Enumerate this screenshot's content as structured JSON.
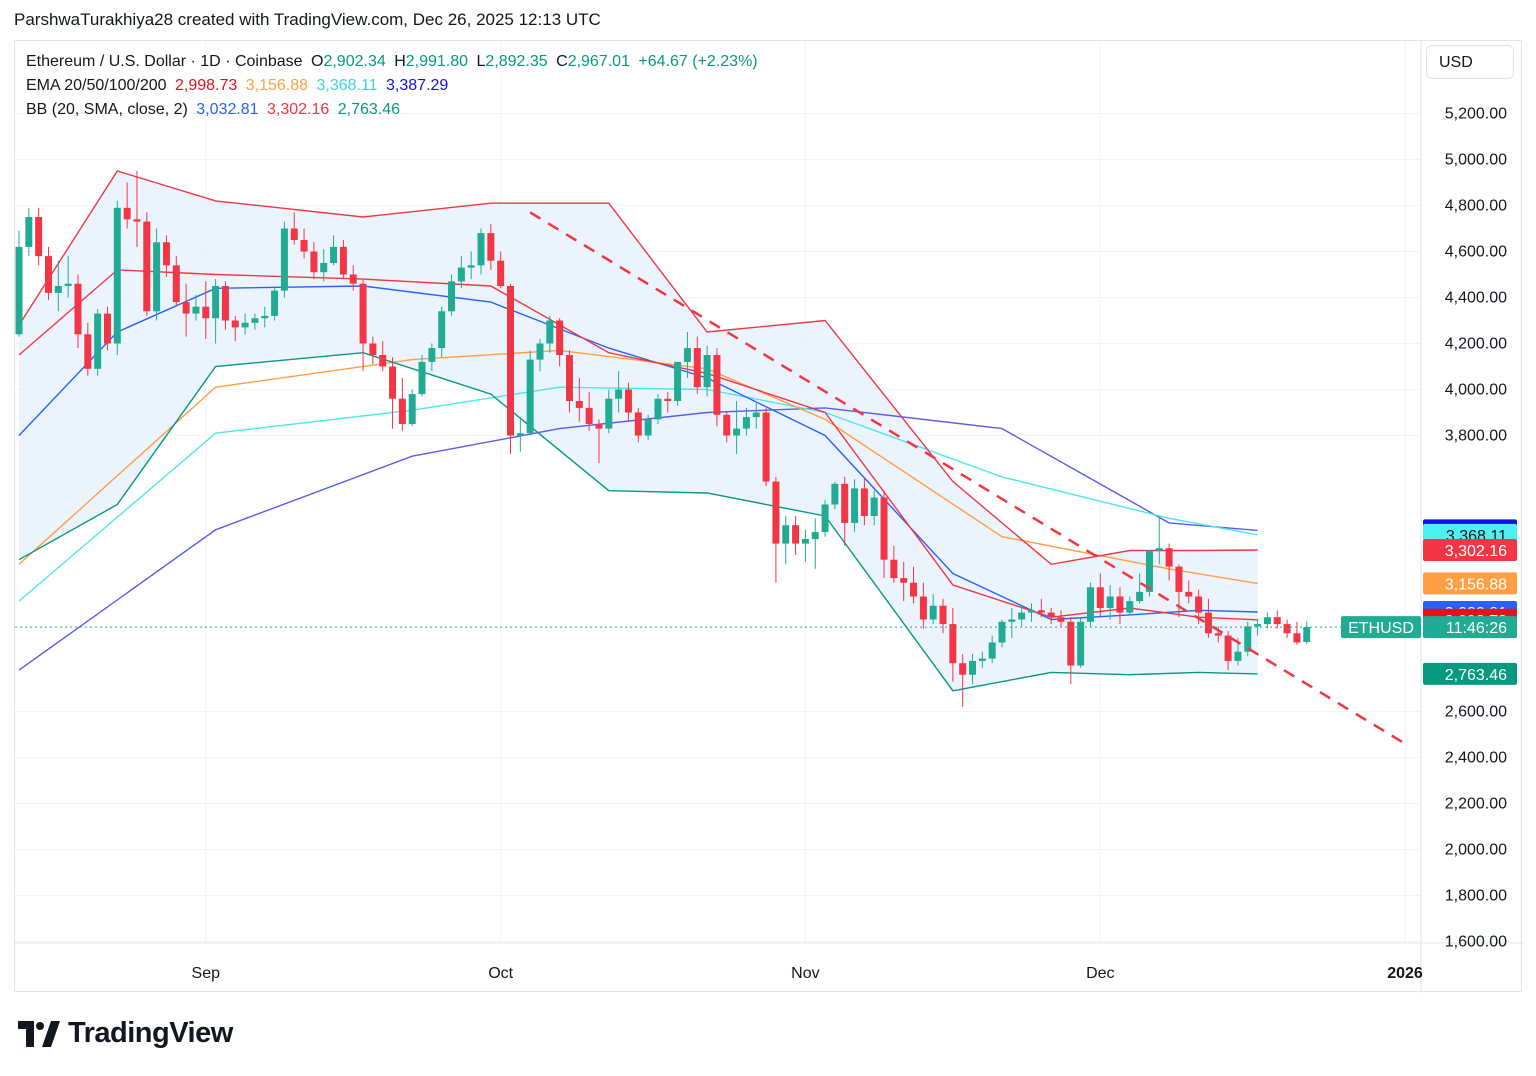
{
  "attribution": "ParshwaTurakhiya28 created with TradingView.com, Dec 26, 2025 12:13 UTC",
  "currency_button": "USD",
  "logo_text": "TradingView",
  "legend": {
    "symbol": "Ethereum / U.S. Dollar · 1D · Coinbase",
    "ohlc": [
      {
        "prefix": "O",
        "value": "2,902.34"
      },
      {
        "prefix": "H",
        "value": "2,991.80"
      },
      {
        "prefix": "L",
        "value": "2,892.35"
      },
      {
        "prefix": "C",
        "value": "2,967.01"
      }
    ],
    "change": "+64.67 (+2.23%)",
    "ema_label": "EMA 20/50/100/200",
    "ema_values": [
      "2,998.73",
      "3,156.88",
      "3,368.11",
      "3,387.29"
    ],
    "bb_label": "BB (20, SMA, close, 2)",
    "bb_values": [
      "3,032.81",
      "3,302.16",
      "2,763.46"
    ]
  },
  "colors": {
    "up": "#22ab94",
    "down": "#f23645",
    "ema20": "#f23645",
    "ema50": "#ff9f43",
    "ema100": "#4de8e8",
    "ema200": "#5b5bf0",
    "bb_basis": "#2962ff",
    "bb_upper": "#f23645",
    "bb_lower": "#089981",
    "bb_fill": "#e3f0fb",
    "trendline": "#f23645",
    "legend_green": "#089981"
  },
  "chart_data": {
    "type": "candlestick",
    "symbol": "ETHUSD",
    "y_ticks": [
      "5,200.00",
      "5,000.00",
      "4,800.00",
      "4,600.00",
      "4,400.00",
      "4,200.00",
      "4,000.00",
      "3,800.00",
      "2,600.00",
      "2,400.00",
      "2,200.00",
      "2,000.00",
      "1,800.00",
      "1,600.00"
    ],
    "y_tick_values": [
      5200,
      5000,
      4800,
      4600,
      4400,
      4200,
      4000,
      3800,
      2600,
      2400,
      2200,
      2000,
      1800,
      1600
    ],
    "x_ticks": [
      {
        "label": "Sep",
        "day": 19
      },
      {
        "label": "Oct",
        "day": 49
      },
      {
        "label": "Nov",
        "day": 80
      },
      {
        "label": "Dec",
        "day": 110
      },
      {
        "label": "2026",
        "day": 141,
        "bold": true
      }
    ],
    "candles": [
      [
        4240,
        4690,
        4230,
        4620
      ],
      [
        4620,
        4790,
        4580,
        4750
      ],
      [
        4750,
        4790,
        4540,
        4580
      ],
      [
        4580,
        4620,
        4390,
        4420
      ],
      [
        4420,
        4560,
        4340,
        4450
      ],
      [
        4450,
        4580,
        4400,
        4460
      ],
      [
        4460,
        4500,
        4180,
        4240
      ],
      [
        4240,
        4290,
        4060,
        4090
      ],
      [
        4090,
        4350,
        4060,
        4330
      ],
      [
        4330,
        4360,
        4170,
        4200
      ],
      [
        4200,
        4820,
        4150,
        4790
      ],
      [
        4790,
        4900,
        4700,
        4740
      ],
      [
        4740,
        4950,
        4620,
        4730
      ],
      [
        4730,
        4770,
        4320,
        4340
      ],
      [
        4340,
        4700,
        4300,
        4640
      ],
      [
        4640,
        4670,
        4490,
        4540
      ],
      [
        4540,
        4580,
        4360,
        4380
      ],
      [
        4380,
        4460,
        4230,
        4330
      ],
      [
        4330,
        4410,
        4300,
        4360
      ],
      [
        4360,
        4470,
        4220,
        4310
      ],
      [
        4310,
        4480,
        4200,
        4450
      ],
      [
        4450,
        4470,
        4260,
        4300
      ],
      [
        4300,
        4320,
        4210,
        4270
      ],
      [
        4270,
        4330,
        4240,
        4290
      ],
      [
        4290,
        4330,
        4260,
        4310
      ],
      [
        4310,
        4360,
        4270,
        4320
      ],
      [
        4320,
        4440,
        4300,
        4430
      ],
      [
        4430,
        4730,
        4400,
        4700
      ],
      [
        4700,
        4770,
        4630,
        4650
      ],
      [
        4650,
        4700,
        4570,
        4600
      ],
      [
        4600,
        4640,
        4480,
        4510
      ],
      [
        4510,
        4610,
        4470,
        4550
      ],
      [
        4550,
        4670,
        4540,
        4620
      ],
      [
        4620,
        4650,
        4480,
        4500
      ],
      [
        4500,
        4540,
        4430,
        4460
      ],
      [
        4460,
        4480,
        4080,
        4200
      ],
      [
        4200,
        4230,
        4110,
        4150
      ],
      [
        4150,
        4210,
        4080,
        4100
      ],
      [
        4100,
        4140,
        3830,
        3960
      ],
      [
        3960,
        4050,
        3820,
        3850
      ],
      [
        3850,
        4000,
        3840,
        3980
      ],
      [
        3980,
        4150,
        3970,
        4120
      ],
      [
        4120,
        4200,
        4080,
        4180
      ],
      [
        4180,
        4360,
        4140,
        4340
      ],
      [
        4340,
        4500,
        4320,
        4470
      ],
      [
        4470,
        4580,
        4440,
        4530
      ],
      [
        4530,
        4600,
        4480,
        4540
      ],
      [
        4540,
        4700,
        4500,
        4680
      ],
      [
        4680,
        4720,
        4520,
        4560
      ],
      [
        4560,
        4600,
        4440,
        4450
      ],
      [
        4450,
        4460,
        3720,
        3800
      ],
      [
        3800,
        3880,
        3730,
        3810
      ],
      [
        3810,
        4170,
        3800,
        4130
      ],
      [
        4130,
        4220,
        4080,
        4200
      ],
      [
        4200,
        4320,
        4160,
        4300
      ],
      [
        4300,
        4310,
        4100,
        4150
      ],
      [
        4150,
        4170,
        3900,
        3950
      ],
      [
        3950,
        4050,
        3860,
        3920
      ],
      [
        3920,
        3990,
        3820,
        3850
      ],
      [
        3850,
        3870,
        3680,
        3830
      ],
      [
        3830,
        4000,
        3810,
        3960
      ],
      [
        3960,
        4080,
        3900,
        4000
      ],
      [
        4000,
        4030,
        3860,
        3900
      ],
      [
        3900,
        3920,
        3770,
        3800
      ],
      [
        3800,
        3890,
        3780,
        3870
      ],
      [
        3870,
        3980,
        3850,
        3960
      ],
      [
        3960,
        3990,
        3900,
        3950
      ],
      [
        3950,
        4100,
        3930,
        4120
      ],
      [
        4120,
        4250,
        4050,
        4180
      ],
      [
        4180,
        4230,
        3980,
        4010
      ],
      [
        4010,
        4190,
        3970,
        4150
      ],
      [
        4150,
        4180,
        3840,
        3890
      ],
      [
        3890,
        3900,
        3770,
        3800
      ],
      [
        3800,
        3950,
        3720,
        3830
      ],
      [
        3830,
        3920,
        3800,
        3880
      ],
      [
        3880,
        3940,
        3830,
        3900
      ],
      [
        3900,
        3920,
        3580,
        3600
      ],
      [
        3600,
        3620,
        3160,
        3330
      ],
      [
        3330,
        3450,
        3240,
        3410
      ],
      [
        3410,
        3450,
        3280,
        3330
      ],
      [
        3330,
        3390,
        3250,
        3350
      ],
      [
        3350,
        3440,
        3220,
        3380
      ],
      [
        3380,
        3520,
        3360,
        3500
      ],
      [
        3500,
        3600,
        3480,
        3590
      ],
      [
        3590,
        3620,
        3320,
        3420
      ],
      [
        3420,
        3610,
        3380,
        3570
      ],
      [
        3570,
        3620,
        3410,
        3450
      ],
      [
        3450,
        3560,
        3410,
        3530
      ],
      [
        3530,
        3560,
        3180,
        3260
      ],
      [
        3260,
        3320,
        3160,
        3180
      ],
      [
        3180,
        3250,
        3080,
        3160
      ],
      [
        3160,
        3230,
        3070,
        3100
      ],
      [
        3100,
        3160,
        2960,
        3000
      ],
      [
        3000,
        3110,
        2980,
        3060
      ],
      [
        3060,
        3090,
        2940,
        2980
      ],
      [
        2980,
        3050,
        2730,
        2810
      ],
      [
        2810,
        2850,
        2620,
        2760
      ],
      [
        2760,
        2850,
        2720,
        2820
      ],
      [
        2820,
        2860,
        2790,
        2830
      ],
      [
        2830,
        2930,
        2810,
        2900
      ],
      [
        2900,
        3000,
        2880,
        2990
      ],
      [
        2990,
        3050,
        2920,
        3000
      ],
      [
        3000,
        3060,
        2970,
        3030
      ],
      [
        3030,
        3070,
        2990,
        3040
      ],
      [
        3040,
        3090,
        3010,
        3030
      ],
      [
        3030,
        3050,
        2980,
        3010
      ],
      [
        3010,
        3040,
        2970,
        2990
      ],
      [
        2990,
        3010,
        2720,
        2800
      ],
      [
        2800,
        3010,
        2790,
        2990
      ],
      [
        2990,
        3160,
        2970,
        3140
      ],
      [
        3140,
        3200,
        3010,
        3050
      ],
      [
        3050,
        3150,
        3000,
        3100
      ],
      [
        3100,
        3140,
        2980,
        3030
      ],
      [
        3030,
        3100,
        3020,
        3080
      ],
      [
        3080,
        3200,
        3070,
        3120
      ],
      [
        3120,
        3290,
        3100,
        3300
      ],
      [
        3300,
        3440,
        3240,
        3310
      ],
      [
        3310,
        3330,
        3170,
        3230
      ],
      [
        3230,
        3240,
        3010,
        3120
      ],
      [
        3120,
        3170,
        3070,
        3100
      ],
      [
        3100,
        3130,
        2980,
        3030
      ],
      [
        3030,
        3090,
        2920,
        2940
      ],
      [
        2940,
        2970,
        2900,
        2930
      ],
      [
        2930,
        2950,
        2780,
        2820
      ],
      [
        2820,
        2920,
        2800,
        2860
      ],
      [
        2860,
        2990,
        2840,
        2970
      ],
      [
        2970,
        3000,
        2930,
        2980
      ],
      [
        2980,
        3030,
        2960,
        3010
      ],
      [
        3010,
        3040,
        2960,
        2980
      ],
      [
        2980,
        3000,
        2920,
        2940
      ],
      [
        2940,
        2990,
        2890,
        2900
      ],
      [
        2902.34,
        2991.8,
        2892.35,
        2967.01
      ]
    ],
    "ema200": [
      [
        0,
        2780
      ],
      [
        20,
        3390
      ],
      [
        40,
        3710
      ],
      [
        55,
        3830
      ],
      [
        70,
        3900
      ],
      [
        82,
        3920
      ],
      [
        100,
        3830
      ],
      [
        117,
        3420
      ],
      [
        126,
        3387.29
      ]
    ],
    "ema100": [
      [
        0,
        3080
      ],
      [
        20,
        3810
      ],
      [
        40,
        3910
      ],
      [
        55,
        4010
      ],
      [
        70,
        4000
      ],
      [
        82,
        3900
      ],
      [
        100,
        3620
      ],
      [
        117,
        3440
      ],
      [
        126,
        3368.11
      ]
    ],
    "ema50": [
      [
        0,
        3240
      ],
      [
        20,
        4010
      ],
      [
        40,
        4130
      ],
      [
        55,
        4170
      ],
      [
        70,
        4090
      ],
      [
        82,
        3870
      ],
      [
        100,
        3360
      ],
      [
        117,
        3220
      ],
      [
        126,
        3156.88
      ]
    ],
    "bb_basis": [
      [
        0,
        3800
      ],
      [
        10,
        4250
      ],
      [
        20,
        4440
      ],
      [
        35,
        4450
      ],
      [
        48,
        4380
      ],
      [
        60,
        4180
      ],
      [
        70,
        4050
      ],
      [
        82,
        3800
      ],
      [
        95,
        3200
      ],
      [
        105,
        3000
      ],
      [
        113,
        3020
      ],
      [
        120,
        3040
      ],
      [
        126,
        3032.81
      ]
    ],
    "bb_upper": [
      [
        0,
        4280
      ],
      [
        10,
        4950
      ],
      [
        20,
        4820
      ],
      [
        35,
        4750
      ],
      [
        48,
        4810
      ],
      [
        60,
        4810
      ],
      [
        70,
        4250
      ],
      [
        82,
        4300
      ],
      [
        95,
        3600
      ],
      [
        105,
        3240
      ],
      [
        113,
        3300
      ],
      [
        120,
        3300
      ],
      [
        126,
        3302.16
      ]
    ],
    "bb_lower": [
      [
        0,
        3260
      ],
      [
        10,
        3500
      ],
      [
        20,
        4100
      ],
      [
        35,
        4160
      ],
      [
        48,
        3980
      ],
      [
        60,
        3560
      ],
      [
        70,
        3550
      ],
      [
        82,
        3450
      ],
      [
        95,
        2690
      ],
      [
        105,
        2770
      ],
      [
        113,
        2760
      ],
      [
        120,
        2770
      ],
      [
        126,
        2763.46
      ]
    ],
    "ema20": [
      [
        0,
        4150
      ],
      [
        10,
        4520
      ],
      [
        20,
        4500
      ],
      [
        35,
        4480
      ],
      [
        48,
        4450
      ],
      [
        60,
        4160
      ],
      [
        70,
        4070
      ],
      [
        82,
        3900
      ],
      [
        95,
        3150
      ],
      [
        105,
        3010
      ],
      [
        113,
        3050
      ],
      [
        120,
        3010
      ],
      [
        126,
        2998.73
      ]
    ],
    "trendline": [
      [
        52,
        4770
      ],
      [
        141,
        2460
      ]
    ],
    "last_price": 2967.01,
    "last_price_label": "ETHUSD",
    "countdown": "11:46:26",
    "price_tags": [
      {
        "text": "3,387.29",
        "value": 3387.29,
        "color": "#1212e0"
      },
      {
        "text": "3,368.11",
        "value": 3368.11,
        "color": "#4ff0f0",
        "text_color": "#131722"
      },
      {
        "text": "3,302.16",
        "value": 3302.16,
        "color": "#f23645"
      },
      {
        "text": "3,156.88",
        "value": 3156.88,
        "color": "#ff9f43"
      },
      {
        "text": "3,032.81",
        "value": 3032.81,
        "color": "#2962ff"
      },
      {
        "text": "2,998.73",
        "value": 2998.73,
        "color": "#e0141e"
      },
      {
        "text": "2,763.46",
        "value": 2763.46,
        "color": "#089981"
      }
    ]
  }
}
